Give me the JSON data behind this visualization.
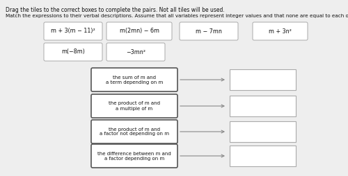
{
  "title_line1": "Drag the tiles to the correct boxes to complete the pairs. Not all tiles will be used.",
  "title_line2": "Match the expressions to their verbal descriptions. Assume that all variables represent integer values and that none are equal to each other.",
  "tiles_row1": [
    "m + 3(m − 11)²",
    "m(2mn) − 6m",
    "m − 7mn",
    "m + 3n²"
  ],
  "tiles_row2": [
    "m(−8m)",
    "−3mn²"
  ],
  "descriptions": [
    "the sum of m and\na term depending on m",
    "the product of m and\na multiple of m",
    "the product of m and\na factor not depending on m",
    "the difference between m and\na factor depending on m"
  ],
  "bg_color": "#eeeeee",
  "tile_bg": "#ffffff",
  "tile_border": "#aaaaaa",
  "desc_border": "#555555",
  "answer_border": "#aaaaaa",
  "answer_bg": "#ffffff",
  "arrow_color": "#888888",
  "text_color": "#111111",
  "font_size": 5.8,
  "instr_font_size": 5.5,
  "desc_font_size": 5.0
}
